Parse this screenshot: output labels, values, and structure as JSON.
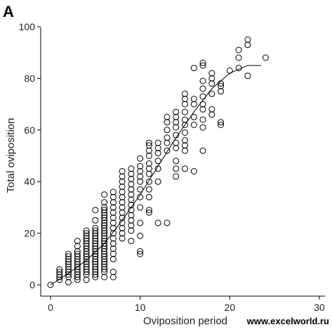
{
  "panel_label": "A",
  "watermark": "www.excelworld.ru",
  "chart_data": {
    "type": "scatter",
    "title": "",
    "xlabel": "Oviposition period",
    "ylabel": "Total oviposition",
    "xlim": [
      0,
      30
    ],
    "ylim": [
      0,
      100
    ],
    "x_ticks": [
      0,
      10,
      20,
      30
    ],
    "y_ticks": [
      0,
      20,
      40,
      60,
      80,
      100
    ],
    "grid": false,
    "legend": "none",
    "series": [
      {
        "marker": "open-circle",
        "points": [
          [
            0,
            0
          ],
          [
            1,
            2
          ],
          [
            1,
            3
          ],
          [
            1,
            4
          ],
          [
            1,
            5
          ],
          [
            1,
            6
          ],
          [
            2,
            1
          ],
          [
            2,
            3
          ],
          [
            2,
            4
          ],
          [
            2,
            5
          ],
          [
            2,
            6
          ],
          [
            2,
            7
          ],
          [
            2,
            8
          ],
          [
            2,
            9
          ],
          [
            2,
            10
          ],
          [
            2,
            11
          ],
          [
            2,
            12
          ],
          [
            3,
            2
          ],
          [
            3,
            3
          ],
          [
            3,
            4
          ],
          [
            3,
            5
          ],
          [
            3,
            6
          ],
          [
            3,
            7
          ],
          [
            3,
            8
          ],
          [
            3,
            9
          ],
          [
            3,
            10
          ],
          [
            3,
            11
          ],
          [
            3,
            12
          ],
          [
            3,
            13
          ],
          [
            3,
            15
          ],
          [
            3,
            17
          ],
          [
            4,
            2
          ],
          [
            4,
            4
          ],
          [
            4,
            5
          ],
          [
            4,
            6
          ],
          [
            4,
            7
          ],
          [
            4,
            8
          ],
          [
            4,
            9
          ],
          [
            4,
            10
          ],
          [
            4,
            11
          ],
          [
            4,
            12
          ],
          [
            4,
            13
          ],
          [
            4,
            14
          ],
          [
            4,
            15
          ],
          [
            4,
            16
          ],
          [
            4,
            17
          ],
          [
            4,
            18
          ],
          [
            4,
            19
          ],
          [
            4,
            20
          ],
          [
            4,
            21
          ],
          [
            5,
            3
          ],
          [
            5,
            4
          ],
          [
            5,
            5
          ],
          [
            5,
            6
          ],
          [
            5,
            7
          ],
          [
            5,
            8
          ],
          [
            5,
            9
          ],
          [
            5,
            10
          ],
          [
            5,
            11
          ],
          [
            5,
            12
          ],
          [
            5,
            13
          ],
          [
            5,
            14
          ],
          [
            5,
            15
          ],
          [
            5,
            16
          ],
          [
            5,
            17
          ],
          [
            5,
            18
          ],
          [
            5,
            19
          ],
          [
            5,
            20
          ],
          [
            5,
            21
          ],
          [
            5,
            22
          ],
          [
            5,
            25
          ],
          [
            5,
            29
          ],
          [
            6,
            3
          ],
          [
            6,
            5
          ],
          [
            6,
            6
          ],
          [
            6,
            7
          ],
          [
            6,
            8
          ],
          [
            6,
            9
          ],
          [
            6,
            10
          ],
          [
            6,
            11
          ],
          [
            6,
            12
          ],
          [
            6,
            13
          ],
          [
            6,
            14
          ],
          [
            6,
            15
          ],
          [
            6,
            16
          ],
          [
            6,
            17
          ],
          [
            6,
            18
          ],
          [
            6,
            19
          ],
          [
            6,
            20
          ],
          [
            6,
            21
          ],
          [
            6,
            22
          ],
          [
            6,
            23
          ],
          [
            6,
            24
          ],
          [
            6,
            25
          ],
          [
            6,
            26
          ],
          [
            6,
            27
          ],
          [
            6,
            28
          ],
          [
            6,
            29
          ],
          [
            6,
            30
          ],
          [
            6,
            32
          ],
          [
            6,
            35
          ],
          [
            7,
            3
          ],
          [
            7,
            5
          ],
          [
            7,
            10
          ],
          [
            7,
            12
          ],
          [
            7,
            14
          ],
          [
            7,
            16
          ],
          [
            7,
            18
          ],
          [
            7,
            20
          ],
          [
            7,
            22
          ],
          [
            7,
            24
          ],
          [
            7,
            26
          ],
          [
            7,
            28
          ],
          [
            7,
            30
          ],
          [
            7,
            32
          ],
          [
            7,
            34
          ],
          [
            7,
            36
          ],
          [
            8,
            18
          ],
          [
            8,
            20
          ],
          [
            8,
            22
          ],
          [
            8,
            24
          ],
          [
            8,
            26
          ],
          [
            8,
            28
          ],
          [
            8,
            30
          ],
          [
            8,
            32
          ],
          [
            8,
            34
          ],
          [
            8,
            36
          ],
          [
            8,
            38
          ],
          [
            8,
            40
          ],
          [
            8,
            42
          ],
          [
            8,
            44
          ],
          [
            9,
            17
          ],
          [
            9,
            21
          ],
          [
            9,
            23
          ],
          [
            9,
            25
          ],
          [
            9,
            27
          ],
          [
            9,
            29
          ],
          [
            9,
            31
          ],
          [
            9,
            33
          ],
          [
            9,
            35
          ],
          [
            9,
            37
          ],
          [
            9,
            39
          ],
          [
            9,
            41
          ],
          [
            9,
            43
          ],
          [
            9,
            45
          ],
          [
            10,
            12
          ],
          [
            10,
            13
          ],
          [
            10,
            19
          ],
          [
            10,
            24
          ],
          [
            10,
            30
          ],
          [
            10,
            34
          ],
          [
            10,
            37
          ],
          [
            10,
            40
          ],
          [
            10,
            42
          ],
          [
            10,
            44
          ],
          [
            10,
            46
          ],
          [
            10,
            49
          ],
          [
            11,
            28
          ],
          [
            11,
            29
          ],
          [
            11,
            34
          ],
          [
            11,
            37
          ],
          [
            11,
            40
          ],
          [
            11,
            43
          ],
          [
            11,
            45
          ],
          [
            11,
            47
          ],
          [
            11,
            50
          ],
          [
            11,
            52
          ],
          [
            11,
            54
          ],
          [
            11,
            55
          ],
          [
            12,
            24
          ],
          [
            12,
            40
          ],
          [
            12,
            45
          ],
          [
            12,
            48
          ],
          [
            12,
            51
          ],
          [
            12,
            53
          ],
          [
            12,
            55
          ],
          [
            13,
            24
          ],
          [
            13,
            52
          ],
          [
            13,
            55
          ],
          [
            13,
            57
          ],
          [
            13,
            60
          ],
          [
            13,
            63
          ],
          [
            13,
            65
          ],
          [
            14,
            42
          ],
          [
            14,
            45
          ],
          [
            14,
            48
          ],
          [
            14,
            53
          ],
          [
            14,
            55
          ],
          [
            14,
            58
          ],
          [
            14,
            61
          ],
          [
            14,
            63
          ],
          [
            14,
            65
          ],
          [
            14,
            67
          ],
          [
            15,
            45
          ],
          [
            15,
            52
          ],
          [
            15,
            54
          ],
          [
            15,
            56
          ],
          [
            15,
            59
          ],
          [
            15,
            62
          ],
          [
            15,
            64
          ],
          [
            15,
            67
          ],
          [
            15,
            70
          ],
          [
            15,
            72
          ],
          [
            15,
            74
          ],
          [
            16,
            44
          ],
          [
            16,
            62
          ],
          [
            16,
            65
          ],
          [
            16,
            70
          ],
          [
            16,
            72
          ],
          [
            16,
            84
          ],
          [
            17,
            52
          ],
          [
            17,
            61
          ],
          [
            17,
            64
          ],
          [
            17,
            68
          ],
          [
            17,
            70
          ],
          [
            17,
            73
          ],
          [
            17,
            76
          ],
          [
            17,
            79
          ],
          [
            17,
            85
          ],
          [
            17,
            86
          ],
          [
            18,
            66
          ],
          [
            18,
            68
          ],
          [
            18,
            74
          ],
          [
            18,
            78
          ],
          [
            18,
            80
          ],
          [
            18,
            82
          ],
          [
            19,
            62
          ],
          [
            19,
            63
          ],
          [
            19,
            75
          ],
          [
            19,
            77
          ],
          [
            19,
            78
          ],
          [
            20,
            83
          ],
          [
            21,
            84
          ],
          [
            21,
            88
          ],
          [
            21,
            91
          ],
          [
            22,
            81
          ],
          [
            22,
            93
          ],
          [
            22,
            95
          ],
          [
            24,
            88
          ]
        ]
      }
    ],
    "trend_line": [
      [
        0,
        0
      ],
      [
        2,
        4.5
      ],
      [
        4,
        9.5
      ],
      [
        6,
        16
      ],
      [
        8,
        25
      ],
      [
        10,
        35
      ],
      [
        12,
        46
      ],
      [
        14,
        57
      ],
      [
        16,
        67
      ],
      [
        18,
        76
      ],
      [
        20,
        82
      ],
      [
        22,
        85
      ],
      [
        23.5,
        85
      ]
    ]
  }
}
